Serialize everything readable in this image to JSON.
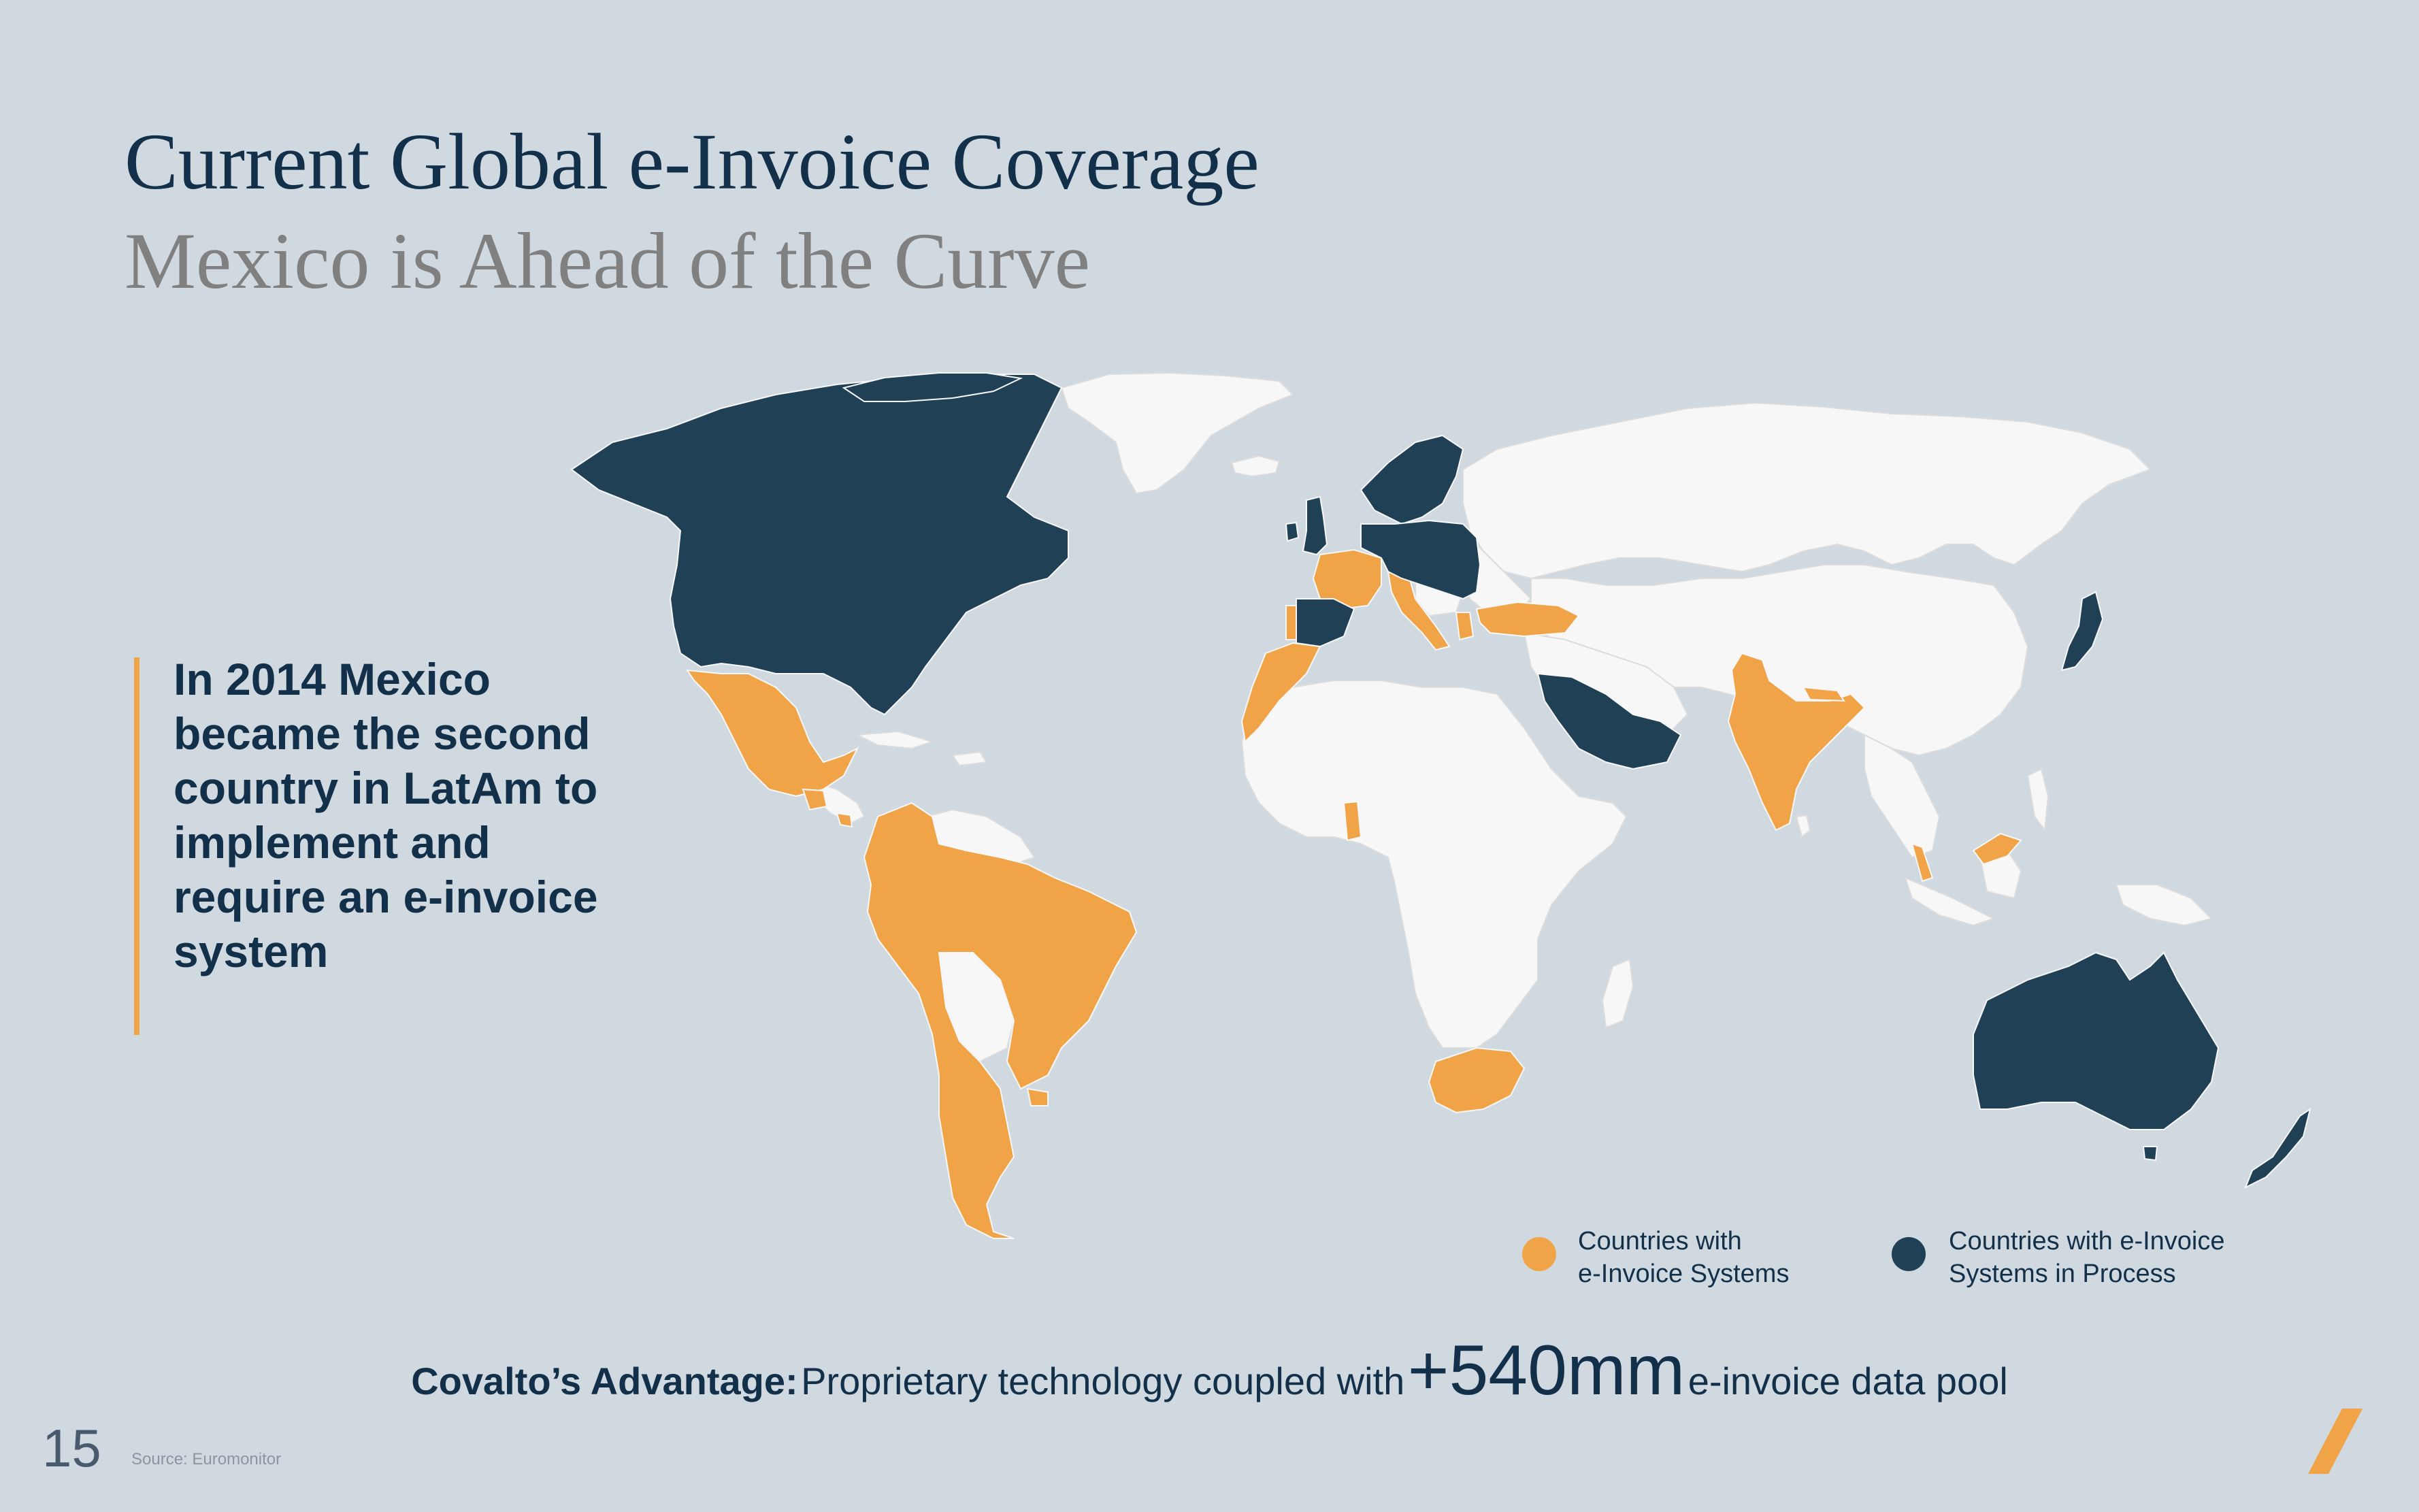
{
  "header": {
    "title": "Current Global e-Invoice Coverage",
    "subtitle": "Mexico is Ahead of the Curve"
  },
  "callout": {
    "text": "In 2014 Mexico became the second country in LatAm to implement and require an e-invoice system"
  },
  "map": {
    "colors": {
      "ocean": "#d1d9e0",
      "no_system": "#f7f7f7",
      "e_invoice_systems": "#f0a447",
      "in_process": "#1f4055"
    },
    "countries_with_e_invoice_systems": [
      "Mexico",
      "Guatemala",
      "Costa Rica",
      "Colombia",
      "Ecuador",
      "Peru",
      "Brazil",
      "Chile",
      "Argentina",
      "Uruguay",
      "France",
      "Italy",
      "Portugal",
      "Greece",
      "Turkey",
      "Morocco",
      "Western Sahara",
      "Ghana",
      "South Africa",
      "India",
      "Nepal",
      "Malaysia"
    ],
    "countries_in_process": [
      "United States",
      "Canada",
      "Greenland region",
      "United Kingdom",
      "Ireland",
      "Spain",
      "Germany",
      "Poland",
      "Norway",
      "Sweden",
      "Finland",
      "Denmark",
      "Netherlands",
      "Belgium",
      "Austria",
      "Hungary",
      "Romania",
      "Serbia",
      "Estonia",
      "Latvia",
      "Lithuania",
      "Saudi Arabia",
      "Oman",
      "United Arab Emirates",
      "Japan",
      "Australia",
      "New Zealand"
    ]
  },
  "legend": {
    "items": [
      {
        "line1": "Countries with",
        "line2": "e-Invoice Systems",
        "color": "#f0a447"
      },
      {
        "line1": "Countries with e-Invoice",
        "line2": "Systems in Process",
        "color": "#1f4055"
      }
    ]
  },
  "footer": {
    "advantage_label": "Covalto’s Advantage:",
    "advantage_text": "Proprietary technology coupled with",
    "advantage_figure": "+540mm",
    "advantage_suffix": "e-invoice data pool",
    "page_number": "15",
    "source": "Source: Euromonitor",
    "logo_color": "#f0a447"
  }
}
